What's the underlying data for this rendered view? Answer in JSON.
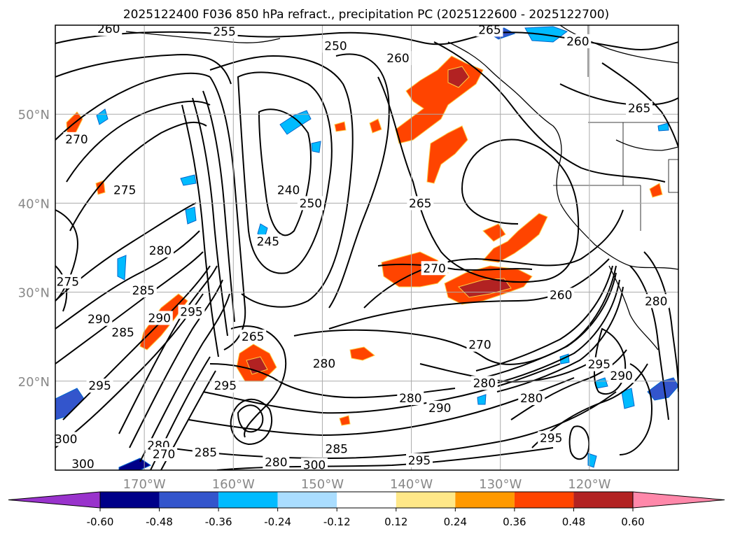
{
  "chart_data": {
    "type": "contour_map",
    "title": "2025122400 F036 850 hPa refract., precipitation PC (2025122600 - 2025122700)",
    "lat_range": [
      10,
      60
    ],
    "lon_range": [
      -180,
      -110
    ],
    "lat_ticks": [
      {
        "lat": 20,
        "label": "20°N"
      },
      {
        "lat": 30,
        "label": "30°N"
      },
      {
        "lat": 40,
        "label": "40°N"
      },
      {
        "lat": 50,
        "label": "50°N"
      }
    ],
    "lon_ticks": [
      {
        "lon": -170,
        "label": "170°W"
      },
      {
        "lon": -160,
        "label": "160°W"
      },
      {
        "lon": -150,
        "label": "150°W"
      },
      {
        "lon": -140,
        "label": "140°W"
      },
      {
        "lon": -130,
        "label": "130°W"
      },
      {
        "lon": -120,
        "label": "120°W"
      }
    ],
    "gridlines": true,
    "colorbar": {
      "levels": [
        "-0.60",
        "-0.48",
        "-0.36",
        "-0.24",
        "-0.12",
        "0.12",
        "0.24",
        "0.36",
        "0.48",
        "0.60"
      ],
      "colors": [
        "#9933cc",
        "#000088",
        "#3355cc",
        "#00bbff",
        "#aaddff",
        "#ffffff",
        "#ffe888",
        "#ff9900",
        "#ff4400",
        "#b22222",
        "#ff88aa"
      ],
      "extend": "both"
    },
    "contour_labels": [
      {
        "text": "260",
        "lon": -174,
        "lat": 59.6
      },
      {
        "text": "255",
        "lon": -161,
        "lat": 59.3
      },
      {
        "text": "250",
        "lon": -148.5,
        "lat": 57.7
      },
      {
        "text": "265",
        "lon": -131.2,
        "lat": 59.5
      },
      {
        "text": "260",
        "lon": -141.5,
        "lat": 56.3
      },
      {
        "text": "260",
        "lon": -121.3,
        "lat": 58.2
      },
      {
        "text": "265",
        "lon": -114.4,
        "lat": 50.7
      },
      {
        "text": "270",
        "lon": -177.6,
        "lat": 47.2
      },
      {
        "text": "275",
        "lon": -172.2,
        "lat": 41.5
      },
      {
        "text": "240",
        "lon": -153.8,
        "lat": 41.5
      },
      {
        "text": "250",
        "lon": -151.3,
        "lat": 40.0
      },
      {
        "text": "245",
        "lon": -156.1,
        "lat": 35.7
      },
      {
        "text": "265",
        "lon": -139.0,
        "lat": 40.0
      },
      {
        "text": "270",
        "lon": -137.4,
        "lat": 32.7
      },
      {
        "text": "280",
        "lon": -168.2,
        "lat": 34.7
      },
      {
        "text": "285",
        "lon": -170.1,
        "lat": 30.2
      },
      {
        "text": "290",
        "lon": -175.1,
        "lat": 27.0
      },
      {
        "text": "285",
        "lon": -172.4,
        "lat": 25.5
      },
      {
        "text": "290",
        "lon": -168.3,
        "lat": 27.1
      },
      {
        "text": "295",
        "lon": -164.7,
        "lat": 27.8
      },
      {
        "text": "265",
        "lon": -157.8,
        "lat": 25.0
      },
      {
        "text": "275",
        "lon": -178.6,
        "lat": 31.2
      },
      {
        "text": "295",
        "lon": -175.0,
        "lat": 19.5
      },
      {
        "text": "295",
        "lon": -160.9,
        "lat": 19.5
      },
      {
        "text": "280",
        "lon": -149.8,
        "lat": 22.0
      },
      {
        "text": "280",
        "lon": -140.1,
        "lat": 18.1
      },
      {
        "text": "290",
        "lon": -136.8,
        "lat": 17.0
      },
      {
        "text": "280",
        "lon": -131.8,
        "lat": 19.8
      },
      {
        "text": "270",
        "lon": -132.3,
        "lat": 24.1
      },
      {
        "text": "260",
        "lon": -123.2,
        "lat": 29.7
      },
      {
        "text": "280",
        "lon": -126.5,
        "lat": 18.1
      },
      {
        "text": "295",
        "lon": -118.9,
        "lat": 21.9
      },
      {
        "text": "290",
        "lon": -116.4,
        "lat": 20.6
      },
      {
        "text": "295",
        "lon": -124.3,
        "lat": 13.6
      },
      {
        "text": "300",
        "lon": -178.8,
        "lat": 13.5
      },
      {
        "text": "300",
        "lon": -176.9,
        "lat": 10.7
      },
      {
        "text": "285",
        "lon": -163.1,
        "lat": 12.0
      },
      {
        "text": "280",
        "lon": -168.4,
        "lat": 12.8
      },
      {
        "text": "270",
        "lon": -167.8,
        "lat": 11.8
      },
      {
        "text": "280",
        "lon": -155.2,
        "lat": 10.9
      },
      {
        "text": "300",
        "lon": -150.9,
        "lat": 10.6
      },
      {
        "text": "285",
        "lon": -148.4,
        "lat": 12.4
      },
      {
        "text": "295",
        "lon": -139.1,
        "lat": 11.1
      },
      {
        "text": "280",
        "lon": -112.5,
        "lat": 29.0
      }
    ]
  }
}
